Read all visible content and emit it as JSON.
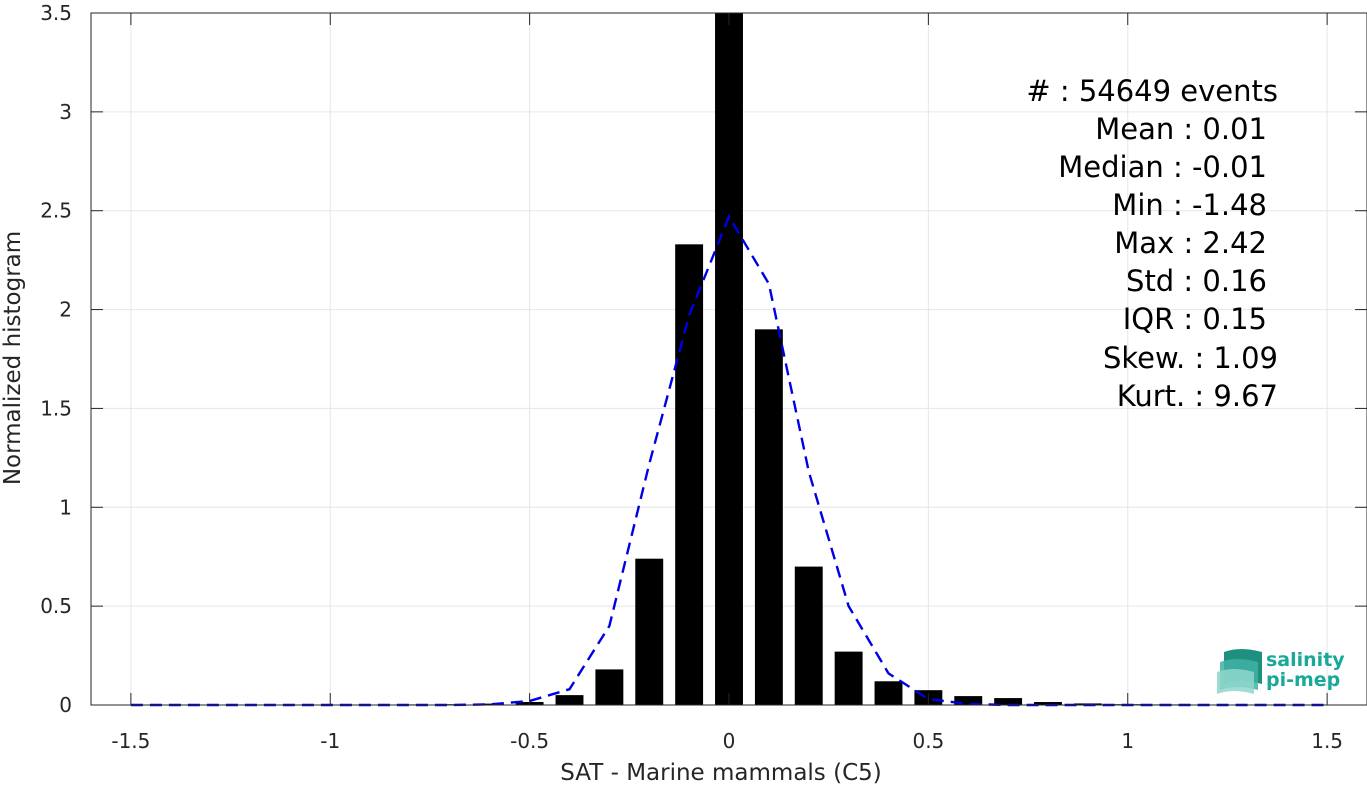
{
  "chart_data": {
    "type": "bar",
    "xlabel": "SAT - Marine mammals (C5)",
    "ylabel": "Normalized histogram",
    "xlim": [
      -1.6,
      1.6
    ],
    "ylim": [
      0,
      3.5
    ],
    "xticks": [
      -1.5,
      -1,
      -0.5,
      0,
      0.5,
      1,
      1.5
    ],
    "xtick_labels": [
      "-1.5",
      "-1",
      "-0.5",
      "0",
      "0.5",
      "1",
      "1.5"
    ],
    "yticks": [
      0,
      0.5,
      1,
      1.5,
      2,
      2.5,
      3,
      3.5
    ],
    "ytick_labels": [
      "0",
      "0.5",
      "1",
      "1.5",
      "2",
      "2.5",
      "3",
      "3.5"
    ],
    "grid": true,
    "bar_width": 0.07,
    "bar_color": "#000000",
    "histogram": {
      "x": [
        -1.5,
        -1.4,
        -1.3,
        -1.2,
        -1.1,
        -1.0,
        -0.9,
        -0.8,
        -0.7,
        -0.6,
        -0.5,
        -0.4,
        -0.3,
        -0.2,
        -0.1,
        0.0,
        0.1,
        0.2,
        0.3,
        0.4,
        0.5,
        0.6,
        0.7,
        0.8,
        0.9,
        1.0,
        1.1,
        1.2,
        1.3,
        1.4,
        1.5
      ],
      "values": [
        0.001,
        0.001,
        0.001,
        0.001,
        0.001,
        0.002,
        0.002,
        0.003,
        0.004,
        0.007,
        0.015,
        0.05,
        0.18,
        0.74,
        2.33,
        3.5,
        1.9,
        0.7,
        0.27,
        0.12,
        0.075,
        0.045,
        0.035,
        0.015,
        0.008,
        0.004,
        0.003,
        0.002,
        0.001,
        0.001,
        0.001
      ]
    },
    "fit_curve": {
      "style": "dashed",
      "color": "#0000e6",
      "x": [
        -1.5,
        -1.4,
        -1.3,
        -1.2,
        -1.1,
        -1.0,
        -0.9,
        -0.8,
        -0.7,
        -0.6,
        -0.5,
        -0.4,
        -0.3,
        -0.2,
        -0.1,
        0.0,
        0.1,
        0.2,
        0.3,
        0.4,
        0.5,
        0.6,
        0.7,
        0.8,
        0.9,
        1.0,
        1.1,
        1.2,
        1.3,
        1.4,
        1.5
      ],
      "values": [
        0,
        0,
        0,
        0,
        0,
        0,
        0,
        0,
        0,
        0.003,
        0.02,
        0.08,
        0.4,
        1.22,
        1.97,
        2.47,
        2.13,
        1.18,
        0.5,
        0.16,
        0.03,
        0.005,
        0,
        0,
        0,
        0,
        0,
        0,
        0,
        0,
        0
      ]
    }
  },
  "stats": [
    {
      "label": "#  : 54649 events"
    },
    {
      "label": "Mean : 0.01"
    },
    {
      "label": "Median : -0.01"
    },
    {
      "label": "Min : -1.48"
    },
    {
      "label": "Max : 2.42"
    },
    {
      "label": "Std : 0.16"
    },
    {
      "label": "IQR : 0.15"
    },
    {
      "label": "Skew. : 1.09"
    },
    {
      "label": "Kurt. : 9.67"
    }
  ],
  "logo": {
    "line1": "salinity",
    "line2": "pi-mep",
    "color": "#1aa899"
  }
}
